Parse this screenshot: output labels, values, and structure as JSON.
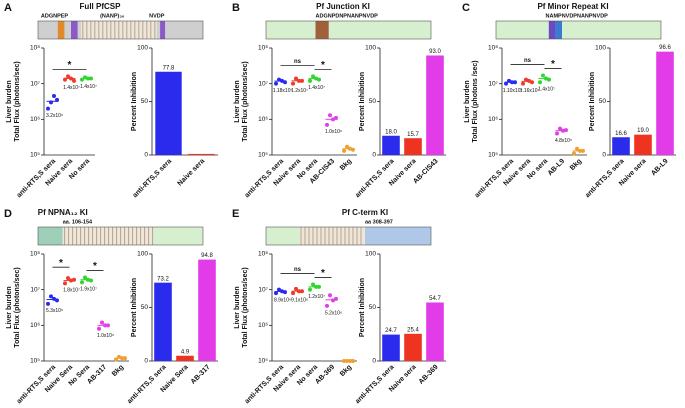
{
  "panels": [
    {
      "letter": "A",
      "title": "Full PfCSP",
      "labels": [
        "ADGNPEP",
        "(NANP)₃₆",
        "NVDP"
      ]
    },
    {
      "letter": "B",
      "title": "Pf Junction KI",
      "labels": [
        "ADGNPDNPNANPNVDP"
      ]
    },
    {
      "letter": "C",
      "title": "Pf Minor Repeat KI",
      "labels": [
        "NAMPNVDPNANPNVDP"
      ]
    },
    {
      "letter": "D",
      "title": "Pf NPNA₁₂ KI",
      "labels": [
        "aa. 106-154"
      ]
    },
    {
      "letter": "E",
      "title": "Pf C-term KI",
      "labels": [
        "aa 308-397"
      ]
    }
  ],
  "chart_data": [
    {
      "type": "dotplot",
      "ylabel": [
        "Liver burden",
        "Total Flux (photons/sec)"
      ],
      "log": true,
      "categories": [
        "anti-RTS,S sera",
        "Naive sera",
        "No sera"
      ],
      "colors": [
        "#2a2af0",
        "#f03a2a",
        "#2fd62f"
      ],
      "values": [
        [
          2000000,
          3000000,
          4500000,
          3500000
        ],
        [
          13000000,
          16000000,
          14000000,
          12000000
        ],
        [
          13000000,
          15000000,
          14000000,
          14000000
        ]
      ],
      "means": [
        3200000,
        14000000,
        14000000
      ],
      "value_labels": [
        "3.2x10⁶",
        "1.4x10⁷",
        "1.4x10⁷"
      ],
      "annotations": [
        {
          "text": "*",
          "from": 0,
          "to": 2
        }
      ],
      "ylim": [
        100000,
        100000000
      ],
      "yticks": [
        {
          "value": 100000,
          "label": "10⁵"
        },
        {
          "value": 1000000,
          "label": "10⁶"
        },
        {
          "value": 10000000,
          "label": "10⁷"
        },
        {
          "value": 100000000,
          "label": "10⁸"
        }
      ]
    },
    {
      "type": "bar",
      "ylabel": "Percent Inhibition",
      "categories": [
        "anti-RTS,S sera",
        "Naive sera"
      ],
      "colors": [
        "#2b2bee",
        "#ee3320"
      ],
      "values": [
        77.8,
        1.0
      ],
      "value_labels": [
        "77.8",
        null
      ],
      "ylim": [
        0,
        100
      ],
      "yticks": [
        0,
        50,
        100
      ]
    },
    {
      "type": "dotplot",
      "ylabel": [
        "Liver burden",
        "Total Flux (photons/sec)"
      ],
      "log": true,
      "categories": [
        "anti-RTS,S sera",
        "Naive sera",
        "No sera",
        "AB-CIS43",
        "Bkg"
      ],
      "colors": [
        "#2a2af0",
        "#f03a2a",
        "#2fd62f",
        "#e040e8",
        "#f0a030"
      ],
      "values": [
        [
          10000000,
          13000000,
          12000000,
          11000000
        ],
        [
          10000000,
          14000000,
          12000000,
          12000000
        ],
        [
          12000000,
          16000000,
          14000000,
          13000000
        ],
        [
          700000,
          1300000,
          1000000,
          1100000
        ],
        [
          130000,
          170000,
          150000,
          140000
        ]
      ],
      "means": [
        11800000,
        12000000,
        14000000,
        1000000,
        150000
      ],
      "value_labels": [
        "1.18x10⁷",
        "1.2x10⁷",
        "1.4x10⁷",
        "1.0x10⁶",
        null
      ],
      "annotations": [
        {
          "text": "ns",
          "from": 0,
          "to": 2
        },
        {
          "text": "*",
          "from": 2,
          "to": 3
        }
      ],
      "ylim": [
        100000,
        100000000
      ],
      "yticks": [
        {
          "value": 100000,
          "label": "10⁵"
        },
        {
          "value": 1000000,
          "label": "10⁶"
        },
        {
          "value": 10000000,
          "label": "10⁷"
        },
        {
          "value": 100000000,
          "label": "10⁸"
        }
      ]
    },
    {
      "type": "bar",
      "ylabel": "Percent Inhibition",
      "categories": [
        "anti-RTS,S sera",
        "Naive sera",
        "AB-CIS43"
      ],
      "colors": [
        "#2b2bee",
        "#ee3320",
        "#e23ce8"
      ],
      "values": [
        18.0,
        15.7,
        93.0
      ],
      "value_labels": [
        "18.0",
        "15.7",
        "93.0"
      ],
      "ylim": [
        0,
        100
      ],
      "yticks": [
        0,
        50,
        100
      ]
    },
    {
      "type": "dotplot",
      "ylabel": [
        "Liver burden",
        "Total Flux (photons /sec)"
      ],
      "log": true,
      "categories": [
        "anti-RTS,S sera",
        "Naive sera",
        "No sera",
        "AB-L9",
        "Bkg"
      ],
      "colors": [
        "#2a2af0",
        "#f03a2a",
        "#2fd62f",
        "#e040e8",
        "#f0a030"
      ],
      "values": [
        [
          10000000,
          12000000,
          11000000,
          11000000
        ],
        [
          10000000,
          13000000,
          12000000,
          11000000
        ],
        [
          11000000,
          17000000,
          14000000,
          13000000
        ],
        [
          400000,
          550000,
          480000,
          500000
        ],
        [
          110000,
          150000,
          130000,
          130000
        ]
      ],
      "means": [
        11000000,
        11600000,
        14000000,
        480000,
        130000
      ],
      "value_labels": [
        "1.10x10⁷",
        "1.16x10⁷",
        "1.4x10⁷",
        "4.8x10⁵",
        null
      ],
      "annotations": [
        {
          "text": "ns",
          "from": 0,
          "to": 2
        },
        {
          "text": "*",
          "from": 2,
          "to": 3
        }
      ],
      "ylim": [
        100000,
        100000000
      ],
      "yticks": [
        {
          "value": 100000,
          "label": "10⁵"
        },
        {
          "value": 1000000,
          "label": "10⁶"
        },
        {
          "value": 10000000,
          "label": "10⁷"
        },
        {
          "value": 100000000,
          "label": "10⁸"
        }
      ]
    },
    {
      "type": "bar",
      "ylabel": "Percent Inhibition",
      "categories": [
        "anti-RTS,S sera",
        "Naive sera",
        "AB-L9"
      ],
      "colors": [
        "#2b2bee",
        "#ee3320",
        "#e23ce8"
      ],
      "values": [
        16.6,
        19.0,
        96.6
      ],
      "value_labels": [
        "16.6",
        "19.0",
        "96.6"
      ],
      "ylim": [
        0,
        100
      ],
      "yticks": [
        0,
        50,
        100
      ]
    },
    {
      "type": "dotplot",
      "ylabel": [
        "Liver burden",
        "Total Flux (photons/sec)"
      ],
      "log": true,
      "categories": [
        "anti-RTS,S sera",
        "Naive Sera",
        "No Sera",
        "AB-317",
        "Bkg"
      ],
      "colors": [
        "#2a2af0",
        "#f03a2a",
        "#2fd62f",
        "#e040e8",
        "#f0a030"
      ],
      "values": [
        [
          4000000,
          6500000,
          5500000,
          5000000
        ],
        [
          15000000,
          21000000,
          18000000,
          19000000
        ],
        [
          16000000,
          22000000,
          19000000,
          18000000
        ],
        [
          800000,
          1200000,
          1000000,
          1000000
        ],
        [
          110000,
          130000,
          120000,
          120000
        ]
      ],
      "means": [
        5300000,
        18000000,
        19000000,
        1000000,
        120000
      ],
      "value_labels": [
        "5.3x10⁶",
        "1.8x10⁷",
        "1.9x10⁷",
        "1.0x10⁶",
        null
      ],
      "annotations": [
        {
          "text": "*",
          "from": 0,
          "to": 1
        },
        {
          "text": "*",
          "from": 2,
          "to": 3
        }
      ],
      "ylim": [
        100000,
        100000000
      ],
      "yticks": [
        {
          "value": 100000,
          "label": "10⁵"
        },
        {
          "value": 1000000,
          "label": "10⁶"
        },
        {
          "value": 10000000,
          "label": "10⁷"
        },
        {
          "value": 100000000,
          "label": "10⁸"
        }
      ]
    },
    {
      "type": "bar",
      "ylabel": "Percent Inhibition",
      "categories": [
        "anti-RTS,S sera",
        "Naive Sera",
        "AB-317"
      ],
      "colors": [
        "#2b2bee",
        "#ee3320",
        "#e23ce8"
      ],
      "values": [
        73.2,
        4.9,
        94.8
      ],
      "value_labels": [
        "73.2",
        "4.9",
        "94.8"
      ],
      "ylim": [
        0,
        100
      ],
      "yticks": [
        0,
        50,
        100
      ]
    },
    {
      "type": "dotplot",
      "ylabel": [
        "Liver burden",
        "Total Flux (photons/sec)"
      ],
      "log": true,
      "categories": [
        "anti-RTS,S sera",
        "Naive sera",
        "No sera",
        "AB-369",
        "Bkg"
      ],
      "colors": [
        "#2a2af0",
        "#f03a2a",
        "#2fd62f",
        "#e040e8",
        "#f0a030"
      ],
      "values": [
        [
          8000000,
          10000000,
          9000000,
          8500000
        ],
        [
          8000000,
          10500000,
          9000000,
          9000000
        ],
        [
          10000000,
          14000000,
          12000000,
          12000000
        ],
        [
          3500000,
          7000000,
          5000000,
          5500000
        ],
        [
          100000,
          100000,
          100000,
          100000
        ]
      ],
      "means": [
        8900000,
        9100000,
        12000000,
        5200000,
        100000
      ],
      "value_labels": [
        "8.9x10⁶",
        "9.1x10⁶",
        "1.2x10⁷",
        "5.2x10⁶",
        null
      ],
      "annotations": [
        {
          "text": "ns",
          "from": 0,
          "to": 2
        },
        {
          "text": "*",
          "from": 2,
          "to": 3
        }
      ],
      "ylim": [
        100000,
        100000000
      ],
      "yticks": [
        {
          "value": 100000,
          "label": "10⁵"
        },
        {
          "value": 1000000,
          "label": "10⁶"
        },
        {
          "value": 10000000,
          "label": "10⁷"
        },
        {
          "value": 100000000,
          "label": "10⁸"
        }
      ]
    },
    {
      "type": "bar",
      "ylabel": "Percent Inhibition",
      "categories": [
        "anti-RTS,S sera",
        "Naive sera",
        "AB-369"
      ],
      "colors": [
        "#2b2bee",
        "#ee3320",
        "#e23ce8"
      ],
      "values": [
        24.7,
        25.4,
        54.7
      ],
      "value_labels": [
        "24.7",
        "25.4",
        "54.7"
      ],
      "ylim": [
        0,
        100
      ],
      "yticks": [
        0,
        50,
        100
      ]
    }
  ]
}
